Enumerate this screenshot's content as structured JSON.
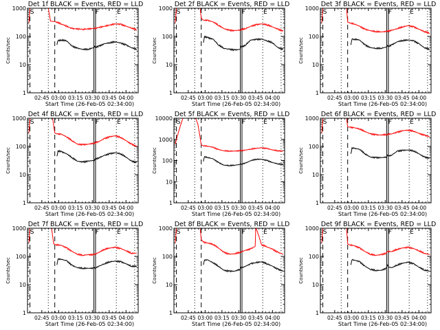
{
  "colors": {
    "events": "#000000",
    "lld": "#ff0000",
    "frame": "#000000",
    "background": "#ffffff"
  },
  "chart_data": [
    {
      "type": "line",
      "title": "Det 1f BLACK = Events, RED = LLD",
      "xlabel": "Start Time (26-Feb-05 02:34:00)",
      "ylabel": "Counts/sec",
      "yscale": "log",
      "ylim": [
        1,
        1000
      ],
      "yticks": [
        "1",
        "10",
        "100",
        "1000"
      ],
      "xlim": [
        0,
        100
      ],
      "xticks": [
        "02:45",
        "03:00",
        "03:15",
        "03:30",
        "03:45",
        "04:00"
      ],
      "markers": {
        "S": 0.5,
        "F": 61,
        "E": 81
      },
      "series": [
        {
          "name": "LLD",
          "color": "red",
          "x": [
            0,
            1,
            18,
            20,
            25,
            30,
            40,
            50,
            60,
            70,
            80,
            85,
            90,
            95,
            100
          ],
          "y": [
            300,
            1000,
            1000,
            350,
            330,
            280,
            190,
            180,
            190,
            230,
            280,
            270,
            230,
            200,
            170
          ]
        },
        {
          "name": "Events",
          "color": "black",
          "x": [
            26,
            27,
            30,
            35,
            40,
            45,
            50,
            55,
            60,
            61,
            62,
            65,
            70,
            75,
            80,
            85,
            90,
            95,
            100
          ],
          "y": [
            50,
            70,
            75,
            70,
            45,
            38,
            35,
            35,
            40,
            45,
            42,
            45,
            55,
            60,
            65,
            58,
            50,
            40,
            35
          ]
        }
      ]
    },
    {
      "type": "line",
      "title": "Det 2f BLACK = Events, RED = LLD",
      "xlabel": "Start Time (26-Feb-05 02:34:00)",
      "ylabel": "Counts/sec",
      "yscale": "log",
      "ylim": [
        1,
        1000
      ],
      "yticks": [
        "1",
        "10",
        "100",
        "1000"
      ],
      "xlim": [
        0,
        100
      ],
      "xticks": [
        "02:45",
        "03:00",
        "03:15",
        "03:30",
        "03:45",
        "04:00"
      ],
      "markers": {
        "S": 0.5,
        "F": 61,
        "E": 81
      },
      "series": [
        {
          "name": "LLD",
          "color": "red",
          "x": [
            0,
            1,
            23,
            24,
            26,
            30,
            35,
            40,
            45,
            50,
            55,
            60,
            65,
            70,
            75,
            80,
            85,
            90,
            95,
            100
          ],
          "y": [
            300,
            1000,
            1000,
            450,
            380,
            370,
            330,
            250,
            190,
            165,
            160,
            170,
            190,
            230,
            260,
            280,
            260,
            220,
            180,
            155
          ]
        },
        {
          "name": "Events",
          "color": "black",
          "x": [
            26,
            27,
            30,
            35,
            40,
            45,
            50,
            55,
            60,
            61,
            62,
            65,
            70,
            75,
            80,
            85,
            90,
            95,
            100
          ],
          "y": [
            60,
            100,
            90,
            80,
            50,
            38,
            35,
            33,
            35,
            45,
            42,
            50,
            75,
            78,
            80,
            70,
            60,
            40,
            35
          ]
        }
      ]
    },
    {
      "type": "line",
      "title": "Det 3f BLACK = Events, RED = LLD",
      "xlabel": "Start Time (26-Feb-05 02:34:00)",
      "ylabel": "Counts/sec",
      "yscale": "log",
      "ylim": [
        1,
        1000
      ],
      "yticks": [
        "1",
        "10",
        "100",
        "1000"
      ],
      "xlim": [
        0,
        100
      ],
      "xticks": [
        "02:45",
        "03:00",
        "03:15",
        "03:30",
        "03:45",
        "04:00"
      ],
      "markers": {
        "S": 0.5,
        "F": 61,
        "E": 81
      },
      "series": [
        {
          "name": "LLD",
          "color": "red",
          "x": [
            0,
            1,
            23,
            24,
            26,
            30,
            35,
            40,
            45,
            50,
            55,
            60,
            65,
            70,
            75,
            80,
            85,
            90,
            95,
            100
          ],
          "y": [
            300,
            1000,
            1000,
            320,
            300,
            280,
            230,
            180,
            160,
            150,
            145,
            150,
            165,
            190,
            220,
            240,
            220,
            180,
            150,
            130
          ]
        },
        {
          "name": "Events",
          "color": "black",
          "x": [
            27,
            28,
            30,
            35,
            40,
            45,
            50,
            55,
            60,
            61,
            62,
            65,
            70,
            75,
            80,
            85,
            90,
            95,
            100
          ],
          "y": [
            50,
            80,
            80,
            75,
            50,
            40,
            38,
            38,
            42,
            48,
            45,
            50,
            65,
            72,
            75,
            70,
            55,
            40,
            35
          ]
        }
      ]
    },
    {
      "type": "line",
      "title": "Det 4f BLACK = Events, RED = LLD",
      "xlabel": "Start Time (26-Feb-05 02:34:00)",
      "ylabel": "Counts/sec",
      "yscale": "log",
      "ylim": [
        1,
        1000
      ],
      "yticks": [
        "1",
        "10",
        "100",
        "1000"
      ],
      "xlim": [
        0,
        100
      ],
      "xticks": [
        "02:45",
        "03:00",
        "03:15",
        "03:30",
        "03:45",
        "04:00"
      ],
      "markers": {
        "S": 0.5,
        "F": 61,
        "E": 81
      },
      "series": [
        {
          "name": "LLD",
          "color": "red",
          "x": [
            0,
            1,
            22,
            24,
            26,
            30,
            35,
            40,
            45,
            50,
            55,
            60,
            65,
            70,
            75,
            80,
            85,
            90,
            95,
            100
          ],
          "y": [
            300,
            1000,
            1000,
            300,
            280,
            270,
            220,
            160,
            120,
            115,
            120,
            130,
            150,
            190,
            220,
            240,
            210,
            160,
            120,
            100
          ]
        },
        {
          "name": "Events",
          "color": "black",
          "x": [
            26,
            27,
            30,
            35,
            40,
            45,
            50,
            55,
            60,
            62,
            65,
            70,
            75,
            80,
            85,
            90,
            95,
            100
          ],
          "y": [
            45,
            70,
            65,
            55,
            40,
            30,
            28,
            30,
            32,
            35,
            40,
            48,
            55,
            60,
            55,
            42,
            30,
            27
          ]
        }
      ]
    },
    {
      "type": "line",
      "title": "Det 5f BLACK = Events, RED = LLD",
      "xlabel": "Start Time (26-Feb-05 02:34:00)",
      "ylabel": "Counts/sec",
      "yscale": "log",
      "ylim": [
        1,
        10000
      ],
      "yticks": [
        "1",
        "10",
        "100",
        "1000",
        "10000"
      ],
      "xlim": [
        0,
        100
      ],
      "xticks": [
        "02:45",
        "03:00",
        "03:15",
        "03:30",
        "03:45",
        "04:00"
      ],
      "markers": {
        "S": 0.5,
        "F": 61,
        "E": 81
      },
      "series": [
        {
          "name": "LLD",
          "color": "red",
          "x": [
            0,
            2,
            5,
            7,
            19,
            21,
            23,
            24,
            26,
            30,
            35,
            40,
            45,
            50,
            55,
            60,
            65,
            70,
            75,
            80,
            85,
            90,
            95,
            100
          ],
          "y": [
            600,
            1500,
            5000,
            10000,
            10000,
            5000,
            1200,
            550,
            500,
            480,
            420,
            330,
            290,
            280,
            280,
            290,
            310,
            350,
            380,
            400,
            370,
            320,
            290,
            280
          ]
        },
        {
          "name": "Events",
          "color": "black",
          "x": [
            26,
            27,
            30,
            35,
            40,
            45,
            50,
            55,
            60,
            62,
            65,
            70,
            75,
            80,
            85,
            90,
            95,
            100
          ],
          "y": [
            90,
            150,
            140,
            120,
            80,
            60,
            58,
            60,
            65,
            70,
            75,
            100,
            115,
            115,
            100,
            80,
            70,
            65
          ]
        }
      ]
    },
    {
      "type": "line",
      "title": "Det 6f BLACK = Events, RED = LLD",
      "xlabel": "Start Time (26-Feb-05 02:34:00)",
      "ylabel": "Counts/sec",
      "yscale": "log",
      "ylim": [
        1,
        1000
      ],
      "yticks": [
        "1",
        "10",
        "100",
        "1000"
      ],
      "xlim": [
        0,
        100
      ],
      "xticks": [
        "02:45",
        "03:00",
        "03:15",
        "03:30",
        "03:45",
        "04:00"
      ],
      "markers": {
        "S": 0.5,
        "F": 61,
        "E": 81
      },
      "series": [
        {
          "name": "LLD",
          "color": "red",
          "x": [
            0,
            1,
            23,
            24,
            26,
            30,
            35,
            40,
            45,
            50,
            55,
            60,
            65,
            70,
            75,
            80,
            85,
            90,
            95,
            100
          ],
          "y": [
            300,
            1000,
            1000,
            500,
            480,
            460,
            420,
            340,
            280,
            260,
            255,
            265,
            280,
            320,
            360,
            380,
            350,
            290,
            250,
            220
          ]
        },
        {
          "name": "Events",
          "color": "black",
          "x": [
            27,
            28,
            30,
            35,
            40,
            45,
            50,
            55,
            60,
            61,
            62,
            65,
            70,
            75,
            80,
            85,
            90,
            95,
            100
          ],
          "y": [
            55,
            90,
            85,
            80,
            55,
            42,
            40,
            40,
            42,
            50,
            45,
            50,
            68,
            72,
            75,
            70,
            55,
            42,
            38
          ]
        }
      ]
    },
    {
      "type": "line",
      "title": "Det 7f BLACK = Events, RED = LLD",
      "xlabel": "Start Time (26-Feb-05 02:34:00)",
      "ylabel": "Counts/sec",
      "yscale": "log",
      "ylim": [
        1,
        1000
      ],
      "yticks": [
        "1",
        "10",
        "100",
        "1000"
      ],
      "xlim": [
        0,
        100
      ],
      "xticks": [
        "02:45",
        "03:00",
        "03:15",
        "03:30",
        "03:45",
        "04:00"
      ],
      "markers": {
        "S": 0.5,
        "F": 61,
        "E": 81
      },
      "series": [
        {
          "name": "LLD",
          "color": "red",
          "x": [
            0,
            1,
            21,
            23,
            25,
            30,
            35,
            40,
            45,
            50,
            55,
            60,
            65,
            70,
            75,
            80,
            85,
            90,
            95,
            100
          ],
          "y": [
            300,
            1000,
            1000,
            280,
            260,
            250,
            200,
            150,
            120,
            110,
            115,
            115,
            140,
            180,
            200,
            210,
            190,
            160,
            130,
            130
          ]
        },
        {
          "name": "Events",
          "color": "black",
          "x": [
            26,
            27,
            30,
            35,
            40,
            45,
            50,
            55,
            60,
            62,
            65,
            70,
            75,
            80,
            85,
            90,
            95,
            100
          ],
          "y": [
            50,
            80,
            80,
            70,
            48,
            40,
            38,
            38,
            38,
            40,
            45,
            55,
            65,
            68,
            65,
            55,
            45,
            45
          ]
        }
      ]
    },
    {
      "type": "line",
      "title": "Det 8f BLACK = Events, RED = LLD",
      "xlabel": "Start Time (26-Feb-05 02:34:00)",
      "ylabel": "Counts/sec",
      "yscale": "log",
      "ylim": [
        1,
        1000
      ],
      "yticks": [
        "1",
        "10",
        "100",
        "1000"
      ],
      "xlim": [
        0,
        100
      ],
      "xticks": [
        "02:45",
        "03:00",
        "03:15",
        "03:30",
        "03:45",
        "04:00"
      ],
      "markers": {
        "S": 0.5,
        "F": 61,
        "E": 81
      },
      "series": [
        {
          "name": "LLD",
          "color": "red",
          "x": [
            0,
            1,
            23,
            24,
            26,
            30,
            35,
            40,
            45,
            50,
            55,
            60,
            65,
            70,
            74,
            74.5,
            75,
            80,
            85,
            90,
            95,
            100
          ],
          "y": [
            300,
            1000,
            1000,
            400,
            320,
            300,
            270,
            200,
            140,
            120,
            125,
            140,
            165,
            185,
            230,
            1000,
            1000,
            260,
            220,
            180,
            140,
            120
          ]
        },
        {
          "name": "Events",
          "color": "black",
          "x": [
            26,
            27,
            30,
            35,
            40,
            45,
            50,
            55,
            60,
            61,
            62,
            65,
            70,
            74,
            80,
            85,
            90,
            95,
            100
          ],
          "y": [
            50,
            75,
            75,
            60,
            45,
            32,
            30,
            30,
            35,
            42,
            40,
            45,
            55,
            60,
            65,
            55,
            45,
            35,
            30
          ]
        }
      ]
    },
    {
      "type": "line",
      "title": "Det 9f BLACK = Events, RED = LLD",
      "xlabel": "Start Time (26-Feb-05 02:34:00)",
      "ylabel": "Counts/sec",
      "yscale": "log",
      "ylim": [
        1,
        1000
      ],
      "yticks": [
        "1",
        "10",
        "100",
        "1000"
      ],
      "xlim": [
        0,
        100
      ],
      "xticks": [
        "02:45",
        "03:00",
        "03:15",
        "03:30",
        "03:45",
        "04:00"
      ],
      "markers": {
        "S": 0.5,
        "F": 61,
        "E": 81
      },
      "series": [
        {
          "name": "LLD",
          "color": "red",
          "x": [
            0,
            1,
            23,
            24,
            26,
            30,
            35,
            40,
            45,
            50,
            55,
            60,
            61,
            65,
            70,
            75,
            80,
            85,
            90,
            95,
            100
          ],
          "y": [
            300,
            1000,
            1000,
            280,
            260,
            240,
            200,
            150,
            120,
            110,
            115,
            130,
            150,
            150,
            180,
            200,
            210,
            190,
            160,
            130,
            115
          ]
        },
        {
          "name": "Events",
          "color": "black",
          "x": [
            27,
            28,
            30,
            35,
            40,
            45,
            50,
            55,
            60,
            61,
            62,
            65,
            70,
            75,
            80,
            85,
            90,
            95,
            100
          ],
          "y": [
            50,
            75,
            75,
            65,
            45,
            35,
            32,
            32,
            38,
            50,
            42,
            40,
            50,
            58,
            62,
            55,
            42,
            33,
            30
          ]
        }
      ]
    }
  ]
}
